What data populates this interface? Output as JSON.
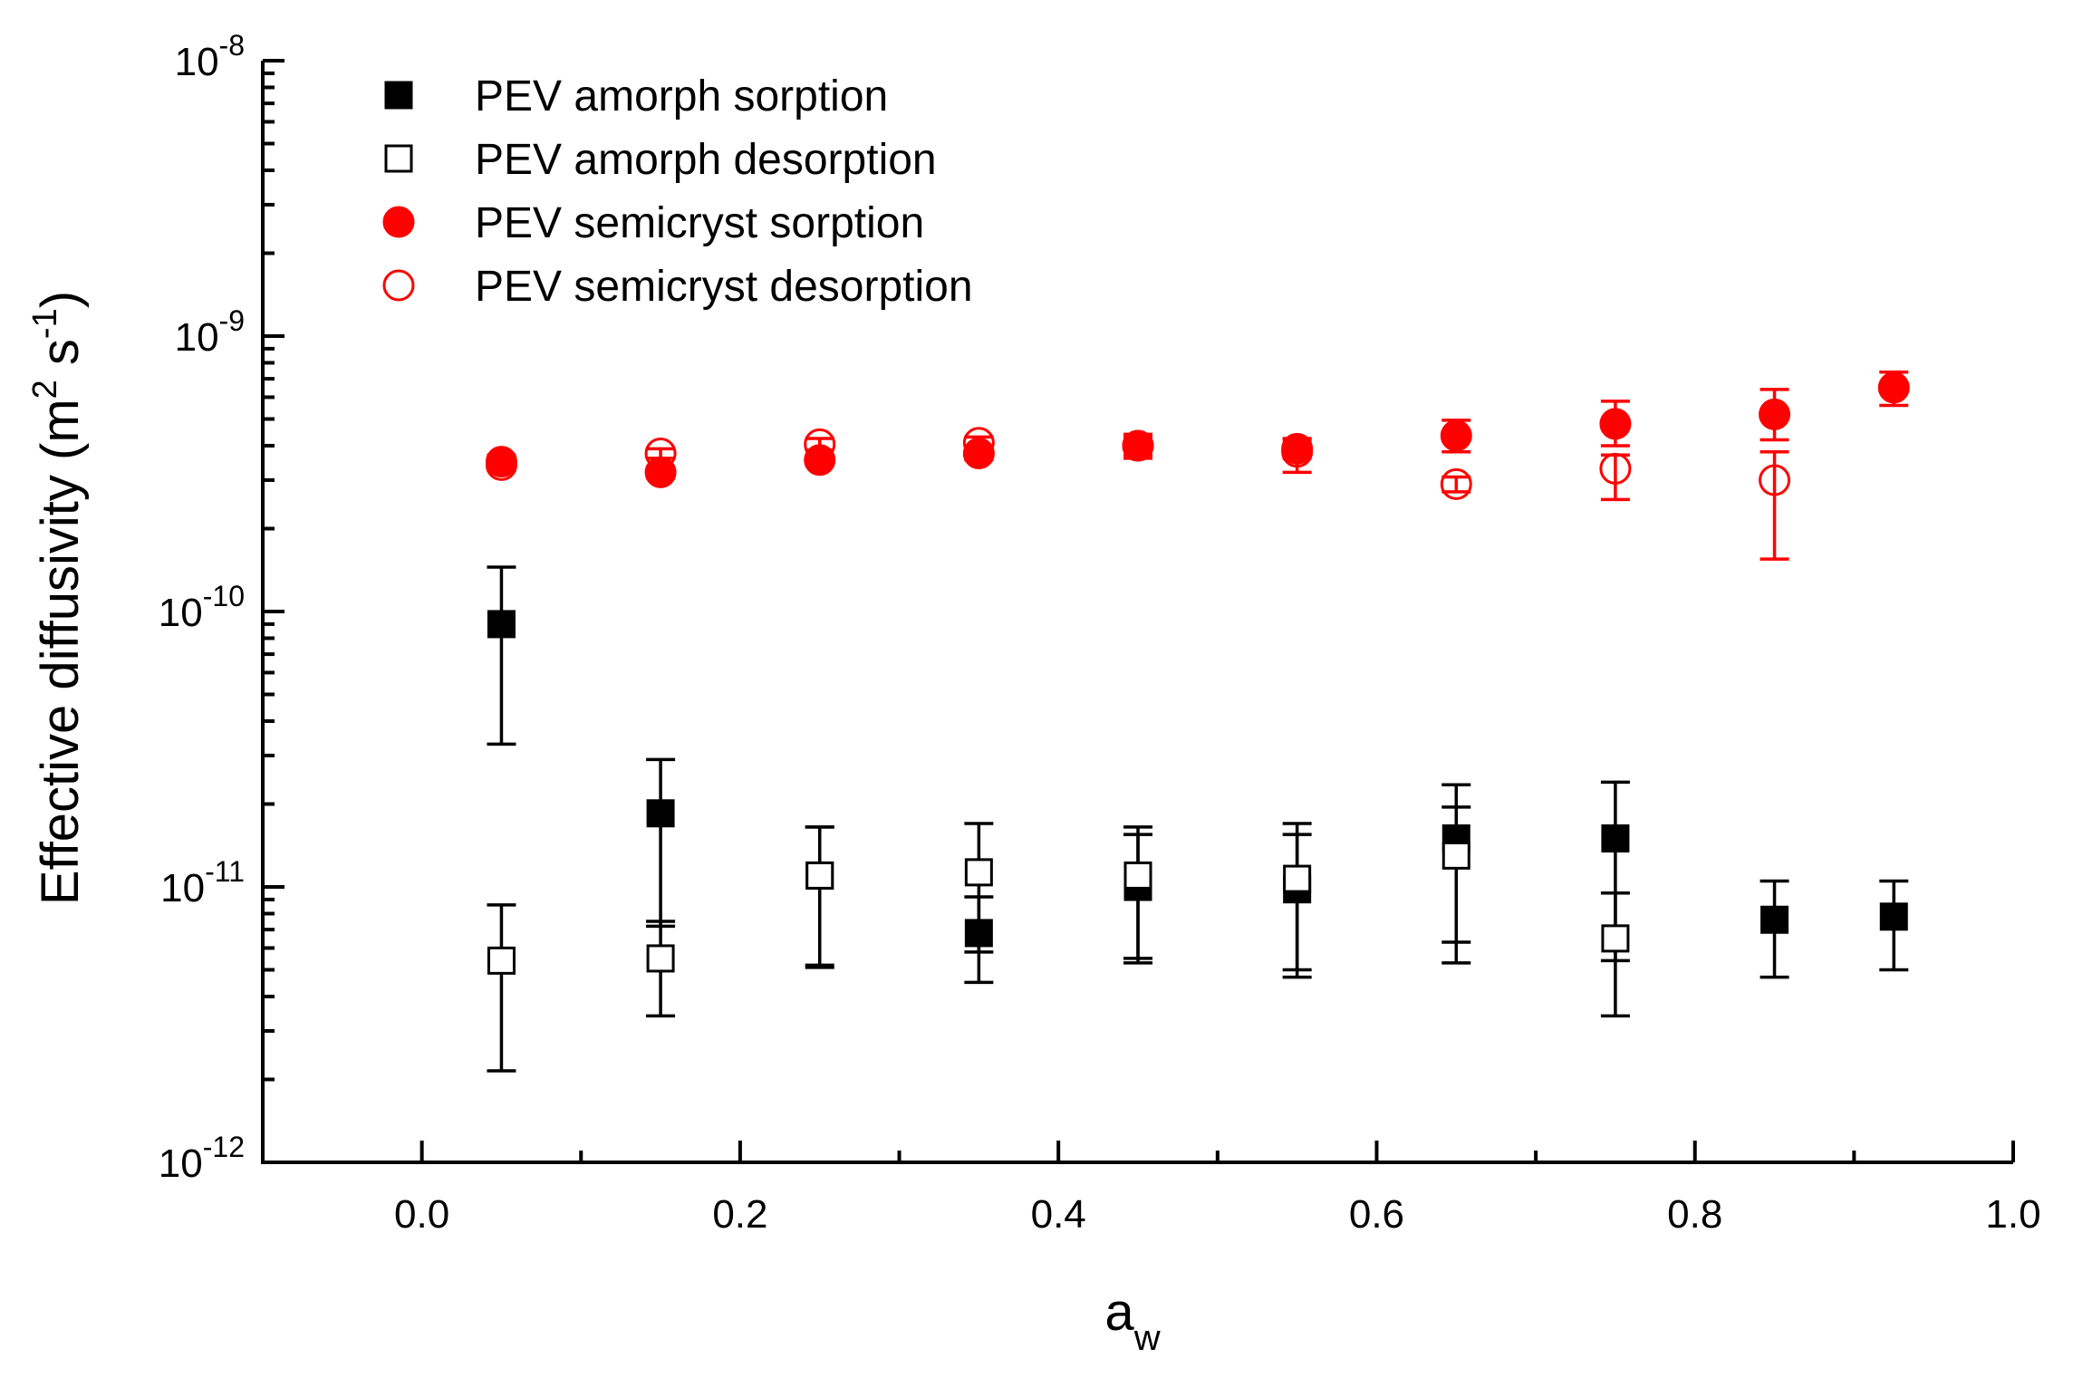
{
  "chart_data": {
    "type": "scatter",
    "title": "",
    "xlabel": "a",
    "xlabel_subscript": "w",
    "ylabel": "Effective diffusivity",
    "ylabel_unit": {
      "open": "(m",
      "sup1": "2",
      "mid": " s",
      "sup2": "-1",
      "close": ")"
    },
    "xlim": [
      -0.1,
      1.0
    ],
    "yscale": "log",
    "ylim": [
      1e-12,
      1e-08
    ],
    "x_ticks": [
      {
        "value": 0.0,
        "label": "0.0"
      },
      {
        "value": 0.2,
        "label": "0.2"
      },
      {
        "value": 0.4,
        "label": "0.4"
      },
      {
        "value": 0.6,
        "label": "0.6"
      },
      {
        "value": 0.8,
        "label": "0.8"
      },
      {
        "value": 1.0,
        "label": "1.0"
      }
    ],
    "y_ticks": [
      {
        "exp": -12,
        "base": "10",
        "sup": "-12"
      },
      {
        "exp": -11,
        "base": "10",
        "sup": "-11"
      },
      {
        "exp": -10,
        "base": "10",
        "sup": "-10"
      },
      {
        "exp": -9,
        "base": "10",
        "sup": "-9"
      },
      {
        "exp": -8,
        "base": "10",
        "sup": "-8"
      }
    ],
    "grid": false,
    "legend_position": "top-left",
    "series": [
      {
        "name": "PEV amorph sorption",
        "marker": "square",
        "filled": true,
        "color": "#000000",
        "points": [
          {
            "x": 0.05,
            "y": 9e-11,
            "ylo": 3.3e-11,
            "yhi": 1.45e-10
          },
          {
            "x": 0.15,
            "y": 1.85e-11,
            "ylo": 7.2e-12,
            "yhi": 2.9e-11
          },
          {
            "x": 0.25,
            "y": 1.1e-11,
            "ylo": 5.1e-12,
            "yhi": 1.65e-11
          },
          {
            "x": 0.35,
            "y": 6.8e-12,
            "ylo": 4.5e-12,
            "yhi": 9.2e-12
          },
          {
            "x": 0.45,
            "y": 1e-11,
            "ylo": 5.5e-12,
            "yhi": 1.55e-11
          },
          {
            "x": 0.55,
            "y": 9.8e-12,
            "ylo": 4.7e-12,
            "yhi": 1.55e-11
          },
          {
            "x": 0.65,
            "y": 1.5e-11,
            "ylo": 6.3e-12,
            "yhi": 2.35e-11
          },
          {
            "x": 0.75,
            "y": 1.5e-11,
            "ylo": 5.4e-12,
            "yhi": 2.4e-11
          },
          {
            "x": 0.85,
            "y": 7.6e-12,
            "ylo": 4.7e-12,
            "yhi": 1.05e-11
          },
          {
            "x": 0.925,
            "y": 7.8e-12,
            "ylo": 5e-12,
            "yhi": 1.05e-11
          }
        ]
      },
      {
        "name": "PEV amorph desorption",
        "marker": "square",
        "filled": false,
        "color": "#000000",
        "points": [
          {
            "x": 0.05,
            "y": 5.4e-12,
            "ylo": 2.15e-12,
            "yhi": 8.6e-12
          },
          {
            "x": 0.15,
            "y": 5.5e-12,
            "ylo": 3.4e-12,
            "yhi": 7.5e-12
          },
          {
            "x": 0.25,
            "y": 1.1e-11,
            "ylo": 5.2e-12,
            "yhi": 1.65e-11
          },
          {
            "x": 0.35,
            "y": 1.13e-11,
            "ylo": 5.8e-12,
            "yhi": 1.7e-11
          },
          {
            "x": 0.45,
            "y": 1.1e-11,
            "ylo": 5.3e-12,
            "yhi": 1.65e-11
          },
          {
            "x": 0.55,
            "y": 1.07e-11,
            "ylo": 5e-12,
            "yhi": 1.7e-11
          },
          {
            "x": 0.65,
            "y": 1.3e-11,
            "ylo": 5.3e-12,
            "yhi": 1.95e-11
          },
          {
            "x": 0.75,
            "y": 6.5e-12,
            "ylo": 3.4e-12,
            "yhi": 9.5e-12
          }
        ]
      },
      {
        "name": "PEV semicryst sorption",
        "marker": "circle",
        "filled": true,
        "color": "#ff0000",
        "points": [
          {
            "x": 0.05,
            "y": 3.5e-10,
            "ylo": 3.3e-10,
            "yhi": 3.7e-10
          },
          {
            "x": 0.15,
            "y": 3.2e-10,
            "ylo": 3.05e-10,
            "yhi": 3.35e-10
          },
          {
            "x": 0.25,
            "y": 3.55e-10,
            "ylo": 3.4e-10,
            "yhi": 3.7e-10
          },
          {
            "x": 0.35,
            "y": 3.75e-10,
            "ylo": 3.55e-10,
            "yhi": 3.95e-10
          },
          {
            "x": 0.45,
            "y": 4e-10,
            "ylo": 3.6e-10,
            "yhi": 4.4e-10
          },
          {
            "x": 0.55,
            "y": 3.9e-10,
            "ylo": 3.6e-10,
            "yhi": 4.2e-10
          },
          {
            "x": 0.65,
            "y": 4.35e-10,
            "ylo": 3.8e-10,
            "yhi": 4.95e-10
          },
          {
            "x": 0.75,
            "y": 4.8e-10,
            "ylo": 4e-10,
            "yhi": 5.8e-10
          },
          {
            "x": 0.85,
            "y": 5.2e-10,
            "ylo": 4.2e-10,
            "yhi": 6.4e-10
          },
          {
            "x": 0.925,
            "y": 6.5e-10,
            "ylo": 5.6e-10,
            "yhi": 7.4e-10
          }
        ]
      },
      {
        "name": "PEV semicryst desorption",
        "marker": "circle",
        "filled": false,
        "color": "#ff0000",
        "points": [
          {
            "x": 0.05,
            "y": 3.4e-10,
            "ylo": 3.25e-10,
            "yhi": 3.55e-10
          },
          {
            "x": 0.15,
            "y": 3.75e-10,
            "ylo": 3.6e-10,
            "yhi": 3.9e-10
          },
          {
            "x": 0.25,
            "y": 4.05e-10,
            "ylo": 3.85e-10,
            "yhi": 4.25e-10
          },
          {
            "x": 0.35,
            "y": 4.1e-10,
            "ylo": 3.9e-10,
            "yhi": 4.3e-10
          },
          {
            "x": 0.45,
            "y": 4e-10,
            "ylo": 3.7e-10,
            "yhi": 4.3e-10
          },
          {
            "x": 0.55,
            "y": 3.8e-10,
            "ylo": 3.2e-10,
            "yhi": 4.25e-10
          },
          {
            "x": 0.65,
            "y": 2.9e-10,
            "ylo": 2.72e-10,
            "yhi": 3.08e-10
          },
          {
            "x": 0.75,
            "y": 3.3e-10,
            "ylo": 2.55e-10,
            "yhi": 3.7e-10
          },
          {
            "x": 0.85,
            "y": 3e-10,
            "ylo": 1.55e-10,
            "yhi": 3.8e-10
          }
        ]
      }
    ]
  }
}
